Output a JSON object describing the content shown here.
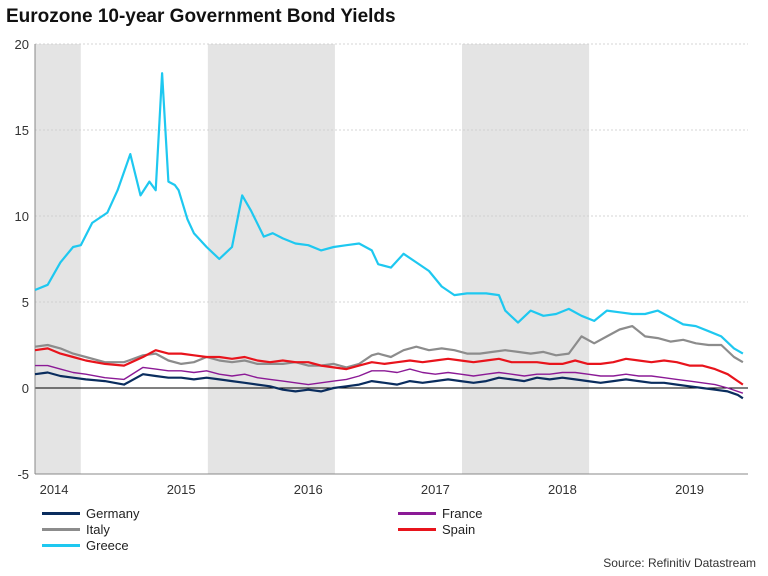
{
  "chart_data": {
    "type": "line",
    "title": "Eurozone 10-year Government Bond Yields",
    "source": "Source: Refinitiv Datastream",
    "ylim": [
      -5,
      20
    ],
    "yticks": [
      -5,
      0,
      5,
      10,
      15,
      20
    ],
    "xlim": [
      2013.85,
      2019.46
    ],
    "xticks": [
      {
        "label": "2014",
        "pos": 2014.0
      },
      {
        "label": "2015",
        "pos": 2015.0
      },
      {
        "label": "2016",
        "pos": 2016.0
      },
      {
        "label": "2017",
        "pos": 2017.0
      },
      {
        "label": "2018",
        "pos": 2018.0
      },
      {
        "label": "2019",
        "pos": 2019.0
      }
    ],
    "shaded_years": [
      [
        2013.85,
        2014.21
      ],
      [
        2015.21,
        2016.21
      ],
      [
        2017.21,
        2018.21
      ]
    ],
    "grid": true,
    "series": [
      {
        "name": "Greece",
        "color": "#1ec8f0",
        "x": [
          2013.85,
          2013.95,
          2014.05,
          2014.15,
          2014.21,
          2014.3,
          2014.42,
          2014.5,
          2014.6,
          2014.68,
          2014.75,
          2014.8,
          2014.85,
          2014.9,
          2014.95,
          2014.98,
          2015.05,
          2015.1,
          2015.2,
          2015.3,
          2015.4,
          2015.48,
          2015.55,
          2015.65,
          2015.72,
          2015.8,
          2015.9,
          2016.0,
          2016.1,
          2016.2,
          2016.3,
          2016.4,
          2016.5,
          2016.55,
          2016.65,
          2016.75,
          2016.85,
          2016.95,
          2017.05,
          2017.15,
          2017.25,
          2017.4,
          2017.5,
          2017.55,
          2017.65,
          2017.75,
          2017.85,
          2017.95,
          2018.05,
          2018.15,
          2018.25,
          2018.35,
          2018.45,
          2018.55,
          2018.65,
          2018.75,
          2018.85,
          2018.95,
          2019.05,
          2019.15,
          2019.25,
          2019.35,
          2019.42
        ],
        "y": [
          5.7,
          6.0,
          7.3,
          8.2,
          8.3,
          9.6,
          10.2,
          11.5,
          13.6,
          11.2,
          12.0,
          11.5,
          18.3,
          12.0,
          11.8,
          11.5,
          9.8,
          9.0,
          8.2,
          7.5,
          8.2,
          11.2,
          10.3,
          8.8,
          9.0,
          8.7,
          8.4,
          8.3,
          8.0,
          8.2,
          8.3,
          8.4,
          8.0,
          7.2,
          7.0,
          7.8,
          7.3,
          6.8,
          5.9,
          5.4,
          5.5,
          5.5,
          5.4,
          4.5,
          3.8,
          4.5,
          4.2,
          4.3,
          4.6,
          4.2,
          3.9,
          4.5,
          4.4,
          4.3,
          4.3,
          4.5,
          4.1,
          3.7,
          3.6,
          3.3,
          3.0,
          2.3,
          2.0
        ]
      },
      {
        "name": "Italy",
        "color": "#8c8c8c",
        "x": [
          2013.85,
          2013.95,
          2014.05,
          2014.15,
          2014.25,
          2014.4,
          2014.55,
          2014.7,
          2014.8,
          2014.9,
          2015.0,
          2015.1,
          2015.2,
          2015.3,
          2015.4,
          2015.5,
          2015.6,
          2015.7,
          2015.8,
          2015.9,
          2016.0,
          2016.1,
          2016.2,
          2016.3,
          2016.4,
          2016.5,
          2016.55,
          2016.65,
          2016.75,
          2016.85,
          2016.95,
          2017.05,
          2017.15,
          2017.25,
          2017.35,
          2017.45,
          2017.55,
          2017.65,
          2017.75,
          2017.85,
          2017.95,
          2018.05,
          2018.15,
          2018.25,
          2018.35,
          2018.45,
          2018.55,
          2018.65,
          2018.75,
          2018.85,
          2018.95,
          2019.05,
          2019.15,
          2019.25,
          2019.35,
          2019.42
        ],
        "y": [
          2.4,
          2.5,
          2.3,
          2.0,
          1.8,
          1.5,
          1.5,
          1.9,
          2.0,
          1.6,
          1.4,
          1.5,
          1.8,
          1.6,
          1.5,
          1.6,
          1.4,
          1.4,
          1.4,
          1.5,
          1.3,
          1.3,
          1.4,
          1.2,
          1.4,
          1.9,
          2.0,
          1.8,
          2.2,
          2.4,
          2.2,
          2.3,
          2.2,
          2.0,
          2.0,
          2.1,
          2.2,
          2.1,
          2.0,
          2.1,
          1.9,
          2.0,
          3.0,
          2.6,
          3.0,
          3.4,
          3.6,
          3.0,
          2.9,
          2.7,
          2.8,
          2.6,
          2.5,
          2.5,
          1.8,
          1.5
        ]
      },
      {
        "name": "Spain",
        "color": "#e8141c",
        "x": [
          2013.85,
          2013.95,
          2014.05,
          2014.15,
          2014.25,
          2014.4,
          2014.55,
          2014.7,
          2014.8,
          2014.9,
          2015.0,
          2015.1,
          2015.2,
          2015.3,
          2015.4,
          2015.5,
          2015.6,
          2015.7,
          2015.8,
          2015.9,
          2016.0,
          2016.1,
          2016.2,
          2016.3,
          2016.4,
          2016.5,
          2016.6,
          2016.7,
          2016.8,
          2016.9,
          2017.0,
          2017.1,
          2017.2,
          2017.3,
          2017.4,
          2017.5,
          2017.6,
          2017.7,
          2017.8,
          2017.9,
          2018.0,
          2018.1,
          2018.2,
          2018.3,
          2018.4,
          2018.5,
          2018.6,
          2018.7,
          2018.8,
          2018.9,
          2019.0,
          2019.1,
          2019.2,
          2019.3,
          2019.38,
          2019.42
        ],
        "y": [
          2.2,
          2.3,
          2.0,
          1.8,
          1.6,
          1.4,
          1.3,
          1.8,
          2.2,
          2.0,
          2.0,
          1.9,
          1.8,
          1.8,
          1.7,
          1.8,
          1.6,
          1.5,
          1.6,
          1.5,
          1.5,
          1.3,
          1.2,
          1.1,
          1.3,
          1.5,
          1.4,
          1.5,
          1.6,
          1.5,
          1.6,
          1.7,
          1.6,
          1.5,
          1.6,
          1.7,
          1.5,
          1.5,
          1.5,
          1.4,
          1.4,
          1.6,
          1.4,
          1.4,
          1.5,
          1.7,
          1.6,
          1.5,
          1.6,
          1.5,
          1.3,
          1.3,
          1.1,
          0.8,
          0.4,
          0.2
        ]
      },
      {
        "name": "France",
        "color": "#8b1a96",
        "x": [
          2013.85,
          2013.95,
          2014.05,
          2014.15,
          2014.25,
          2014.4,
          2014.55,
          2014.7,
          2014.8,
          2014.9,
          2015.0,
          2015.1,
          2015.2,
          2015.3,
          2015.4,
          2015.5,
          2015.6,
          2015.7,
          2015.8,
          2015.9,
          2016.0,
          2016.1,
          2016.2,
          2016.3,
          2016.4,
          2016.5,
          2016.6,
          2016.7,
          2016.8,
          2016.9,
          2017.0,
          2017.1,
          2017.2,
          2017.3,
          2017.4,
          2017.5,
          2017.6,
          2017.7,
          2017.8,
          2017.9,
          2018.0,
          2018.1,
          2018.2,
          2018.3,
          2018.4,
          2018.5,
          2018.6,
          2018.7,
          2018.8,
          2018.9,
          2019.0,
          2019.1,
          2019.2,
          2019.3,
          2019.42
        ],
        "y": [
          1.3,
          1.3,
          1.1,
          0.9,
          0.8,
          0.6,
          0.5,
          1.2,
          1.1,
          1.0,
          1.0,
          0.9,
          1.0,
          0.8,
          0.7,
          0.8,
          0.6,
          0.5,
          0.4,
          0.3,
          0.2,
          0.3,
          0.4,
          0.5,
          0.7,
          1.0,
          1.0,
          0.9,
          1.1,
          0.9,
          0.8,
          0.9,
          0.8,
          0.7,
          0.8,
          0.9,
          0.8,
          0.7,
          0.8,
          0.8,
          0.9,
          0.9,
          0.8,
          0.7,
          0.7,
          0.8,
          0.7,
          0.7,
          0.6,
          0.5,
          0.4,
          0.3,
          0.2,
          0.0,
          -0.3
        ]
      },
      {
        "name": "Germany",
        "color": "#0a2d5e",
        "x": [
          2013.85,
          2013.95,
          2014.05,
          2014.15,
          2014.25,
          2014.4,
          2014.55,
          2014.7,
          2014.8,
          2014.9,
          2015.0,
          2015.1,
          2015.2,
          2015.3,
          2015.4,
          2015.5,
          2015.6,
          2015.7,
          2015.8,
          2015.9,
          2016.0,
          2016.1,
          2016.2,
          2016.3,
          2016.4,
          2016.5,
          2016.6,
          2016.7,
          2016.8,
          2016.9,
          2017.0,
          2017.1,
          2017.2,
          2017.3,
          2017.4,
          2017.5,
          2017.6,
          2017.7,
          2017.8,
          2017.9,
          2018.0,
          2018.1,
          2018.2,
          2018.3,
          2018.4,
          2018.5,
          2018.6,
          2018.7,
          2018.8,
          2018.9,
          2019.0,
          2019.1,
          2019.2,
          2019.3,
          2019.38,
          2019.42
        ],
        "y": [
          0.8,
          0.9,
          0.7,
          0.6,
          0.5,
          0.4,
          0.2,
          0.8,
          0.7,
          0.6,
          0.6,
          0.5,
          0.6,
          0.5,
          0.4,
          0.3,
          0.2,
          0.1,
          -0.1,
          -0.2,
          -0.1,
          -0.2,
          0.0,
          0.1,
          0.2,
          0.4,
          0.3,
          0.2,
          0.4,
          0.3,
          0.4,
          0.5,
          0.4,
          0.3,
          0.4,
          0.6,
          0.5,
          0.4,
          0.6,
          0.5,
          0.6,
          0.5,
          0.4,
          0.3,
          0.4,
          0.5,
          0.4,
          0.3,
          0.3,
          0.2,
          0.1,
          0.0,
          -0.1,
          -0.2,
          -0.4,
          -0.6
        ]
      }
    ],
    "legend": [
      {
        "name": "Germany",
        "color": "#0a2d5e"
      },
      {
        "name": "France",
        "color": "#8b1a96"
      },
      {
        "name": "Italy",
        "color": "#8c8c8c"
      },
      {
        "name": "Spain",
        "color": "#e8141c"
      },
      {
        "name": "Greece",
        "color": "#1ec8f0"
      }
    ]
  }
}
